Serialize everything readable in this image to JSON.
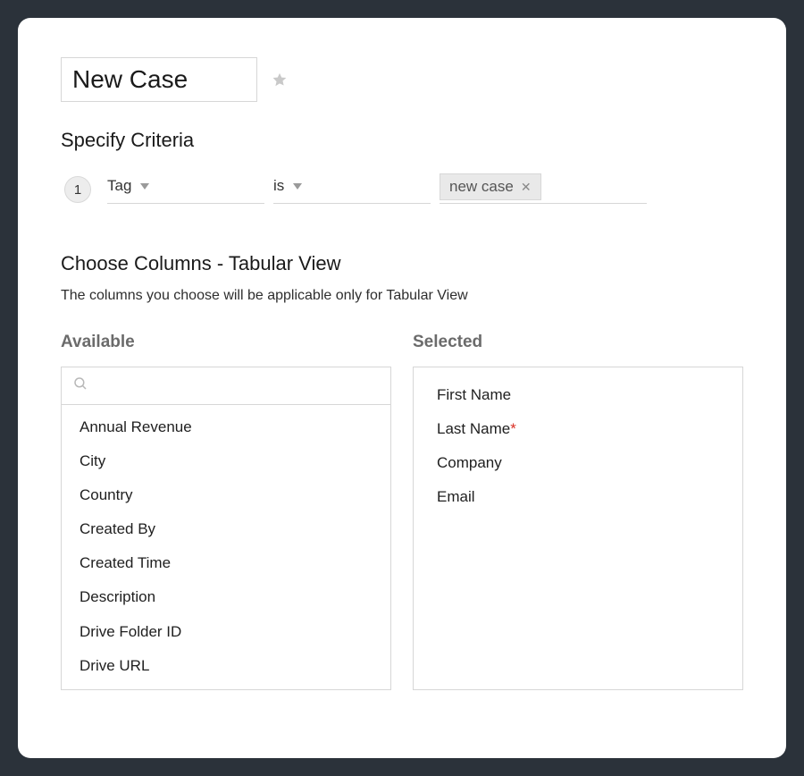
{
  "title_value": "New Case",
  "sections": {
    "criteria_heading": "Specify Criteria",
    "columns_heading": "Choose Columns - Tabular View",
    "columns_hint": "The columns you choose will be applicable only for Tabular View"
  },
  "criteria": {
    "row_number": "1",
    "field_label": "Tag",
    "operator_label": "is",
    "tag_value": "new case"
  },
  "columns": {
    "available_header": "Available",
    "selected_header": "Selected",
    "search_placeholder": "",
    "available_items": [
      "Annual Revenue",
      "City",
      "Country",
      "Created By",
      "Created Time",
      "Description",
      "Drive Folder ID",
      "Drive URL"
    ],
    "selected_items": [
      {
        "label": "First Name",
        "required": false
      },
      {
        "label": "Last Name",
        "required": true
      },
      {
        "label": "Company",
        "required": false
      },
      {
        "label": "Email",
        "required": false
      }
    ]
  },
  "colors": {
    "page_bg": "#2b323a",
    "panel_bg": "#ffffff",
    "border": "#d7d7d7",
    "chip_bg": "#e9e9e9",
    "muted_text": "#6b6b6b",
    "text": "#1a1a1a",
    "required": "#d93025",
    "icon_muted": "#b8b8b8"
  }
}
